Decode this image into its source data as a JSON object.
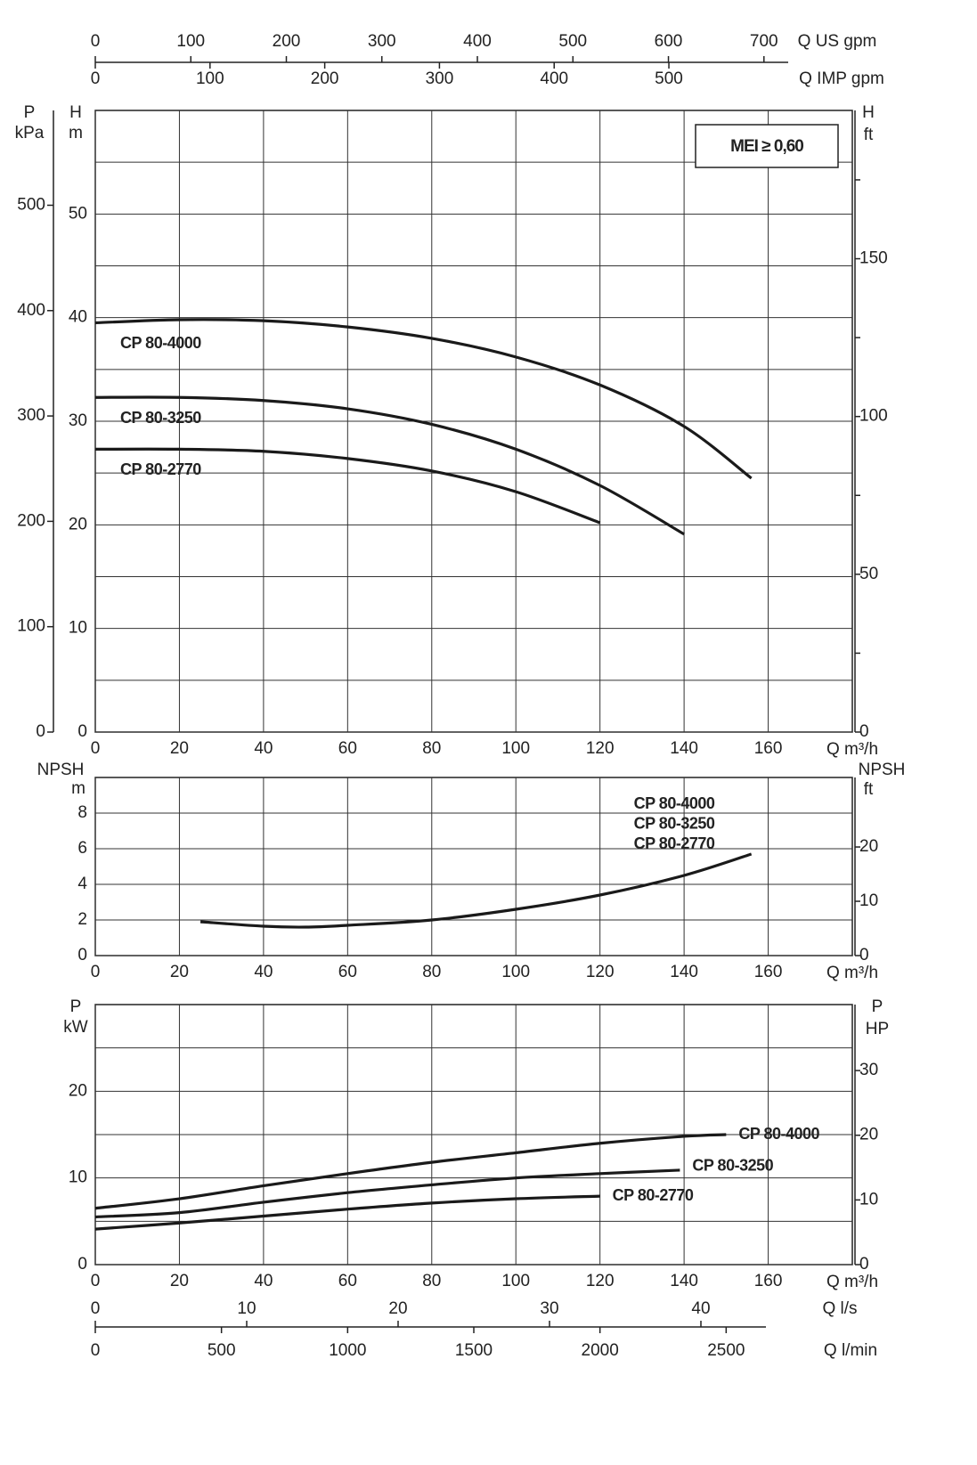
{
  "chart_data": [
    {
      "type": "line",
      "x_label": "Q m³/h",
      "xlim": [
        0,
        180
      ],
      "xticks": [
        0,
        20,
        40,
        60,
        80,
        100,
        120,
        140,
        160
      ],
      "y_label": "H",
      "y_unit": "m",
      "ylim": [
        0,
        60
      ],
      "yticks": [
        0,
        10,
        20,
        30,
        40,
        50
      ],
      "yminor": [
        5,
        15,
        25,
        35,
        45,
        55
      ],
      "left_axis": {
        "label": "P",
        "unit": "kPa",
        "lim": [
          0,
          590
        ],
        "ticks": [
          0,
          100,
          200,
          300,
          400,
          500
        ]
      },
      "right_axis": {
        "label": "H",
        "unit": "ft",
        "lim": [
          0,
          197
        ],
        "ticks": [
          0,
          50,
          100,
          150
        ],
        "minor": [
          25,
          75,
          125,
          175
        ]
      },
      "top_axes": [
        {
          "label": "Q US gpm",
          "lim": [
            0,
            792.5
          ],
          "ticks": [
            0,
            100,
            200,
            300,
            400,
            500,
            600,
            700
          ]
        },
        {
          "label": "Q IMP gpm",
          "lim": [
            0,
            659.9
          ],
          "ticks": [
            0,
            100,
            200,
            300,
            400,
            500
          ]
        }
      ],
      "annotation": "MEI ≥ 0,60",
      "color": "#1a1a1a",
      "series": [
        {
          "name": "CP 80-4000",
          "x": [
            0,
            20,
            40,
            60,
            80,
            100,
            120,
            140,
            156
          ],
          "values": [
            39.5,
            39.8,
            39.7,
            39.1,
            38,
            36.2,
            33.5,
            29.5,
            24.5
          ]
        },
        {
          "name": "CP 80-3250",
          "x": [
            0,
            20,
            40,
            60,
            80,
            100,
            120,
            140
          ],
          "values": [
            32.3,
            32.3,
            32,
            31.2,
            29.7,
            27.3,
            23.8,
            19.1
          ]
        },
        {
          "name": "CP 80-2770",
          "x": [
            0,
            20,
            40,
            60,
            80,
            100,
            120
          ],
          "values": [
            27.3,
            27.3,
            27.1,
            26.4,
            25.2,
            23.2,
            20.2
          ]
        }
      ]
    },
    {
      "type": "line",
      "x_label": "Q m³/h",
      "xlim": [
        0,
        180
      ],
      "xticks": [
        0,
        20,
        40,
        60,
        80,
        100,
        120,
        140,
        160
      ],
      "y_label": "NPSH",
      "y_unit": "m",
      "ylim": [
        0,
        10
      ],
      "yticks": [
        0,
        2,
        4,
        6,
        8
      ],
      "right_axis": {
        "label": "NPSH",
        "unit": "ft",
        "lim": [
          0,
          32.8
        ],
        "ticks": [
          0,
          10,
          20
        ]
      },
      "curve_labels": [
        "CP 80-4000",
        "CP 80-3250",
        "CP 80-2770"
      ],
      "color": "#1a1a1a",
      "series": [
        {
          "x": [
            25,
            40,
            50,
            60,
            80,
            100,
            120,
            140,
            156
          ],
          "values": [
            1.9,
            1.65,
            1.6,
            1.7,
            2.0,
            2.6,
            3.4,
            4.5,
            5.7
          ]
        }
      ]
    },
    {
      "type": "line",
      "x_label": "Q m³/h",
      "xlim": [
        0,
        180
      ],
      "xticks": [
        0,
        20,
        40,
        60,
        80,
        100,
        120,
        140,
        160
      ],
      "y_label": "P",
      "y_unit": "kW",
      "ylim": [
        0,
        30
      ],
      "yticks": [
        0,
        10,
        20
      ],
      "yminor": [
        5,
        15,
        25
      ],
      "right_axis": {
        "label": "P",
        "unit": "HP",
        "lim": [
          0,
          40.2
        ],
        "ticks": [
          0,
          10,
          20,
          30
        ]
      },
      "bottom_axes": [
        {
          "label": "Q l/s",
          "lim": [
            0,
            50
          ],
          "ticks": [
            0,
            10,
            20,
            30,
            40
          ]
        },
        {
          "label": "Q l/min",
          "lim": [
            0,
            3000
          ],
          "ticks": [
            0,
            500,
            1000,
            1500,
            2000,
            2500
          ]
        }
      ],
      "color": "#1a1a1a",
      "series": [
        {
          "name": "CP 80-4000",
          "x": [
            0,
            20,
            40,
            60,
            80,
            100,
            120,
            140,
            150
          ],
          "values": [
            6.5,
            7.6,
            9.1,
            10.5,
            11.8,
            12.9,
            14,
            14.8,
            15
          ]
        },
        {
          "name": "CP 80-3250",
          "x": [
            0,
            20,
            40,
            60,
            80,
            100,
            120,
            139
          ],
          "values": [
            5.5,
            6.0,
            7.2,
            8.3,
            9.2,
            10,
            10.5,
            10.9
          ]
        },
        {
          "name": "CP 80-2770",
          "x": [
            0,
            20,
            40,
            60,
            80,
            100,
            120
          ],
          "values": [
            4.1,
            4.8,
            5.6,
            6.4,
            7.1,
            7.6,
            7.9
          ]
        }
      ]
    }
  ]
}
